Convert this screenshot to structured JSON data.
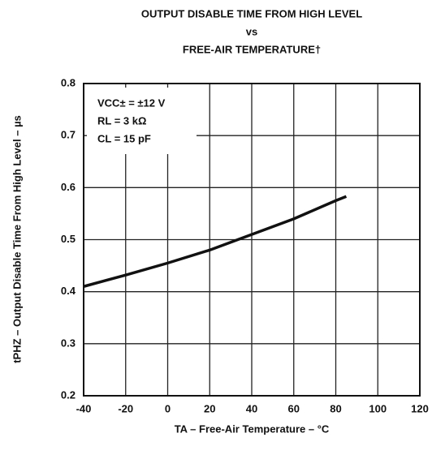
{
  "chart_data": {
    "type": "line",
    "title": [
      "OUTPUT DISABLE TIME FROM HIGH LEVEL",
      "vs",
      "FREE-AIR TEMPERATURE†"
    ],
    "xlabel": "TA – Free-Air Temperature – °C",
    "ylabel": "tPHZ – Output Disable Time From High Level – µs",
    "annotations": [
      "VCC± = ±12 V",
      "RL = 3 kΩ",
      "CL = 15 pF"
    ],
    "x": [
      -40,
      -20,
      0,
      20,
      40,
      60,
      80,
      85
    ],
    "values": [
      0.41,
      0.432,
      0.455,
      0.48,
      0.51,
      0.54,
      0.575,
      0.583
    ],
    "color": "#111111",
    "xlim": [
      -40,
      120
    ],
    "xticks": [
      -40,
      -20,
      0,
      20,
      40,
      60,
      80,
      100,
      120
    ],
    "ylim": [
      0.2,
      0.8
    ],
    "yticks": [
      0.2,
      0.3,
      0.4,
      0.5,
      0.6,
      0.7,
      0.8
    ],
    "grid": true
  }
}
